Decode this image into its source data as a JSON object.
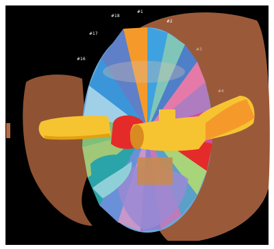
{
  "image": {
    "background_color": "#000000",
    "frame_color": "#ffffff"
  },
  "segment_labels": {
    "s1": "#1",
    "s2": "#2",
    "s3": "#3",
    "s4": "#4",
    "s16": "#16",
    "s17": "#17",
    "s18": "#18"
  },
  "colors": {
    "body": "#9a5a3a",
    "body_light": "#b36a45",
    "vessel_yellow": "#f6c431",
    "vessel_orange": "#f59a2a",
    "red": "#e52a2a",
    "teal": "#2aa4a8"
  }
}
